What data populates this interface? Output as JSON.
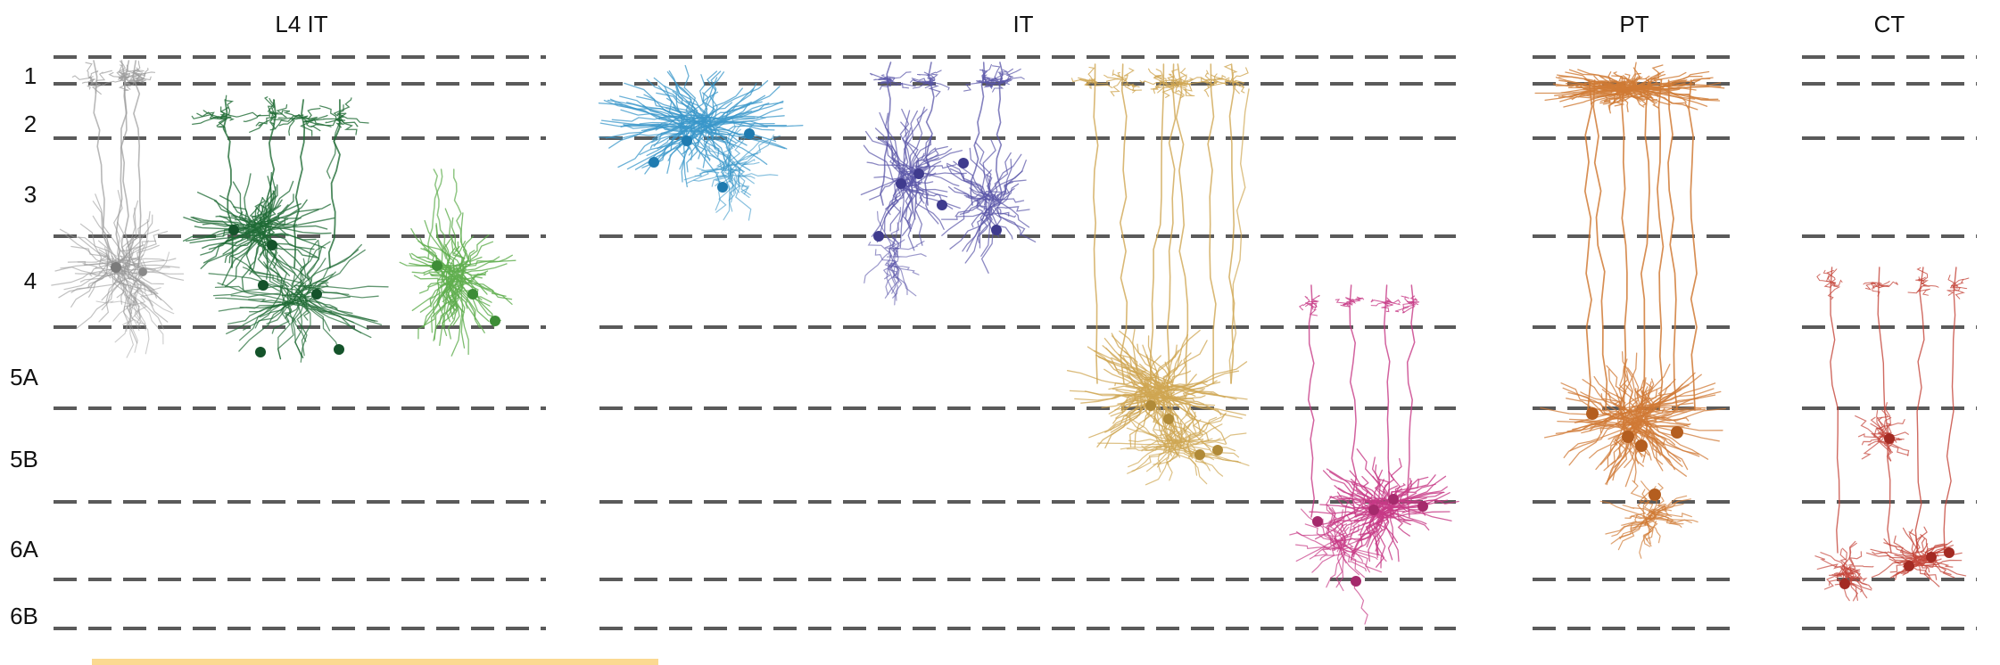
{
  "figure": {
    "groups": [
      {
        "id": "l4it",
        "title": "L4 IT"
      },
      {
        "id": "it",
        "title": "IT"
      },
      {
        "id": "pt",
        "title": "PT"
      },
      {
        "id": "ct",
        "title": "CT"
      }
    ],
    "layers": [
      "1",
      "2",
      "3",
      "4",
      "5A",
      "5B",
      "6A",
      "6B"
    ],
    "colors": {
      "gray": "#9a9a9a",
      "darkgreen": "#1f6b35",
      "green": "#5fae4e",
      "blue": "#3a97c9",
      "purple": "#5a55a8",
      "gold": "#cfa652",
      "magenta": "#c73a86",
      "orange": "#d07a35",
      "red": "#c4453a",
      "highlight": "#fbd991",
      "dashes": "#5a5a5a"
    },
    "neurons": [
      {
        "group": "l4it",
        "color": "gray",
        "type": "L4 IT (gray)"
      },
      {
        "group": "l4it",
        "color": "darkgreen",
        "type": "L4 IT (dark green)"
      },
      {
        "group": "l4it",
        "color": "green",
        "type": "L4 IT (light green)"
      },
      {
        "group": "it",
        "color": "blue",
        "type": "IT L2"
      },
      {
        "group": "it",
        "color": "purple",
        "type": "IT L2/3"
      },
      {
        "group": "it",
        "color": "gold",
        "type": "IT L5"
      },
      {
        "group": "it",
        "color": "magenta",
        "type": "IT L6"
      },
      {
        "group": "pt",
        "color": "orange",
        "type": "PT L5"
      },
      {
        "group": "ct",
        "color": "red",
        "type": "CT L6"
      }
    ]
  }
}
